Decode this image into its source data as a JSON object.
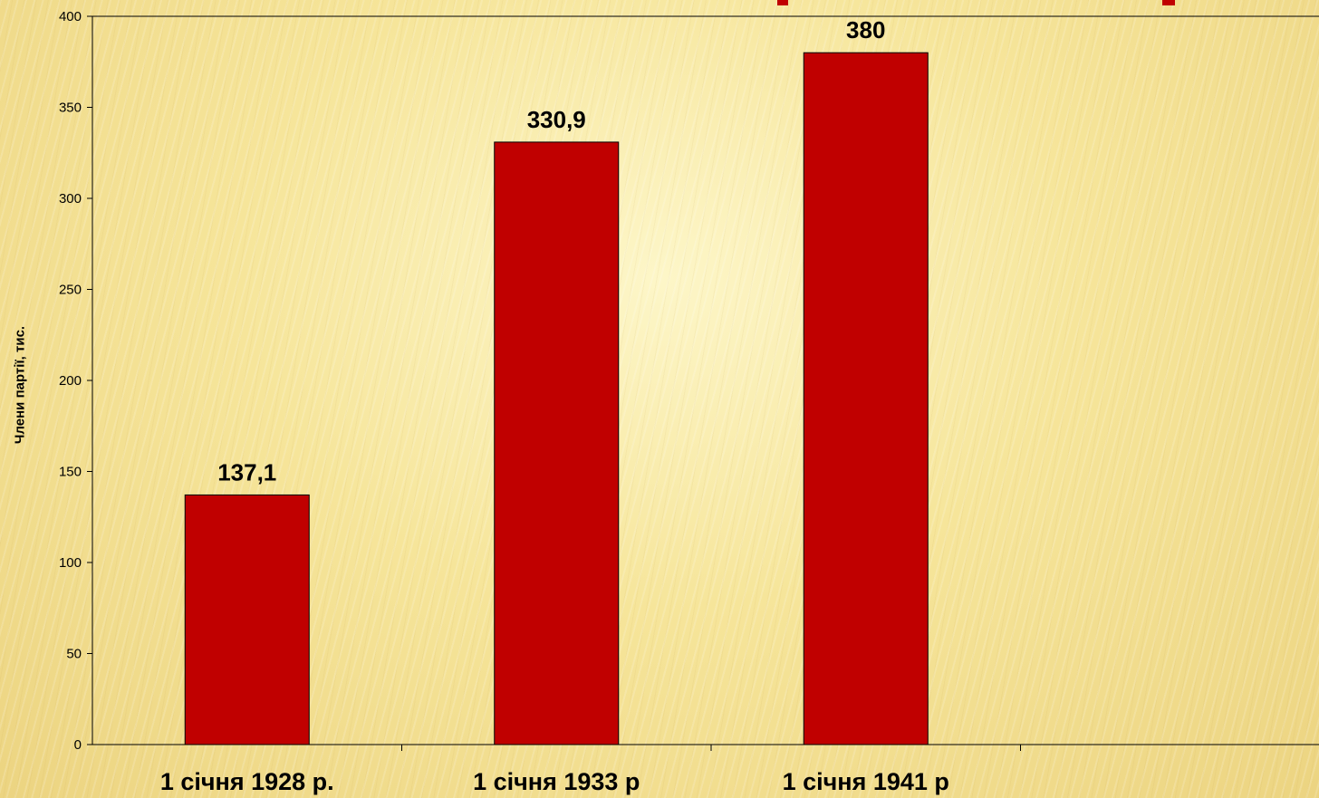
{
  "chart_data": {
    "type": "bar",
    "categories": [
      "1 січня 1928 р.",
      "1 січня 1933 р",
      "1 січня 1941 р"
    ],
    "values": [
      137.1,
      330.9,
      380
    ],
    "value_labels": [
      "137,1",
      "330,9",
      "380"
    ],
    "ylabel": "Члени партії, тис.",
    "ylim": [
      0,
      400
    ],
    "yticks": [
      0,
      50,
      100,
      150,
      200,
      250,
      300,
      350,
      400
    ],
    "grid": false,
    "bar_color": "#c00000"
  }
}
